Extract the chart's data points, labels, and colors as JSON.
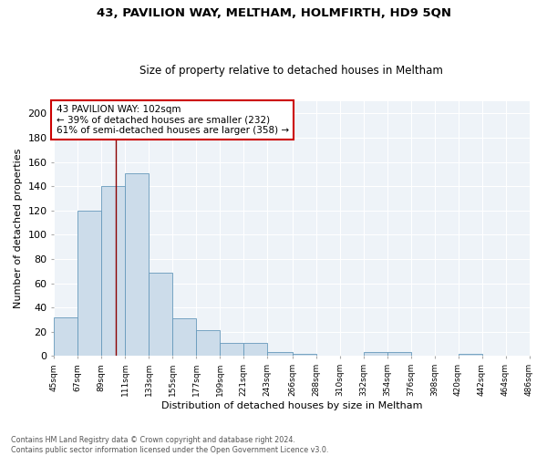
{
  "title1": "43, PAVILION WAY, MELTHAM, HOLMFIRTH, HD9 5QN",
  "title2": "Size of property relative to detached houses in Meltham",
  "xlabel": "Distribution of detached houses by size in Meltham",
  "ylabel": "Number of detached properties",
  "bar_color": "#ccdcea",
  "bar_edge_color": "#6699bb",
  "bg_color": "#eef3f8",
  "bins": [
    45,
    67,
    89,
    111,
    133,
    155,
    177,
    199,
    221,
    243,
    266,
    288,
    310,
    332,
    354,
    376,
    398,
    420,
    442,
    464,
    486
  ],
  "heights": [
    32,
    120,
    140,
    151,
    69,
    31,
    21,
    11,
    11,
    3,
    2,
    0,
    0,
    3,
    3,
    0,
    0,
    2,
    0,
    0
  ],
  "tick_labels": [
    "45sqm",
    "67sqm",
    "89sqm",
    "111sqm",
    "133sqm",
    "155sqm",
    "177sqm",
    "199sqm",
    "221sqm",
    "243sqm",
    "266sqm",
    "288sqm",
    "310sqm",
    "332sqm",
    "354sqm",
    "376sqm",
    "398sqm",
    "420sqm",
    "442sqm",
    "464sqm",
    "486sqm"
  ],
  "property_size": 102,
  "vline_color": "#8b0000",
  "annotation_text": "43 PAVILION WAY: 102sqm\n← 39% of detached houses are smaller (232)\n61% of semi-detached houses are larger (358) →",
  "annotation_box_color": "#ffffff",
  "annotation_box_edge": "#cc0000",
  "footer1": "Contains HM Land Registry data © Crown copyright and database right 2024.",
  "footer2": "Contains public sector information licensed under the Open Government Licence v3.0.",
  "ylim": [
    0,
    210
  ],
  "yticks": [
    0,
    20,
    40,
    60,
    80,
    100,
    120,
    140,
    160,
    180,
    200
  ]
}
